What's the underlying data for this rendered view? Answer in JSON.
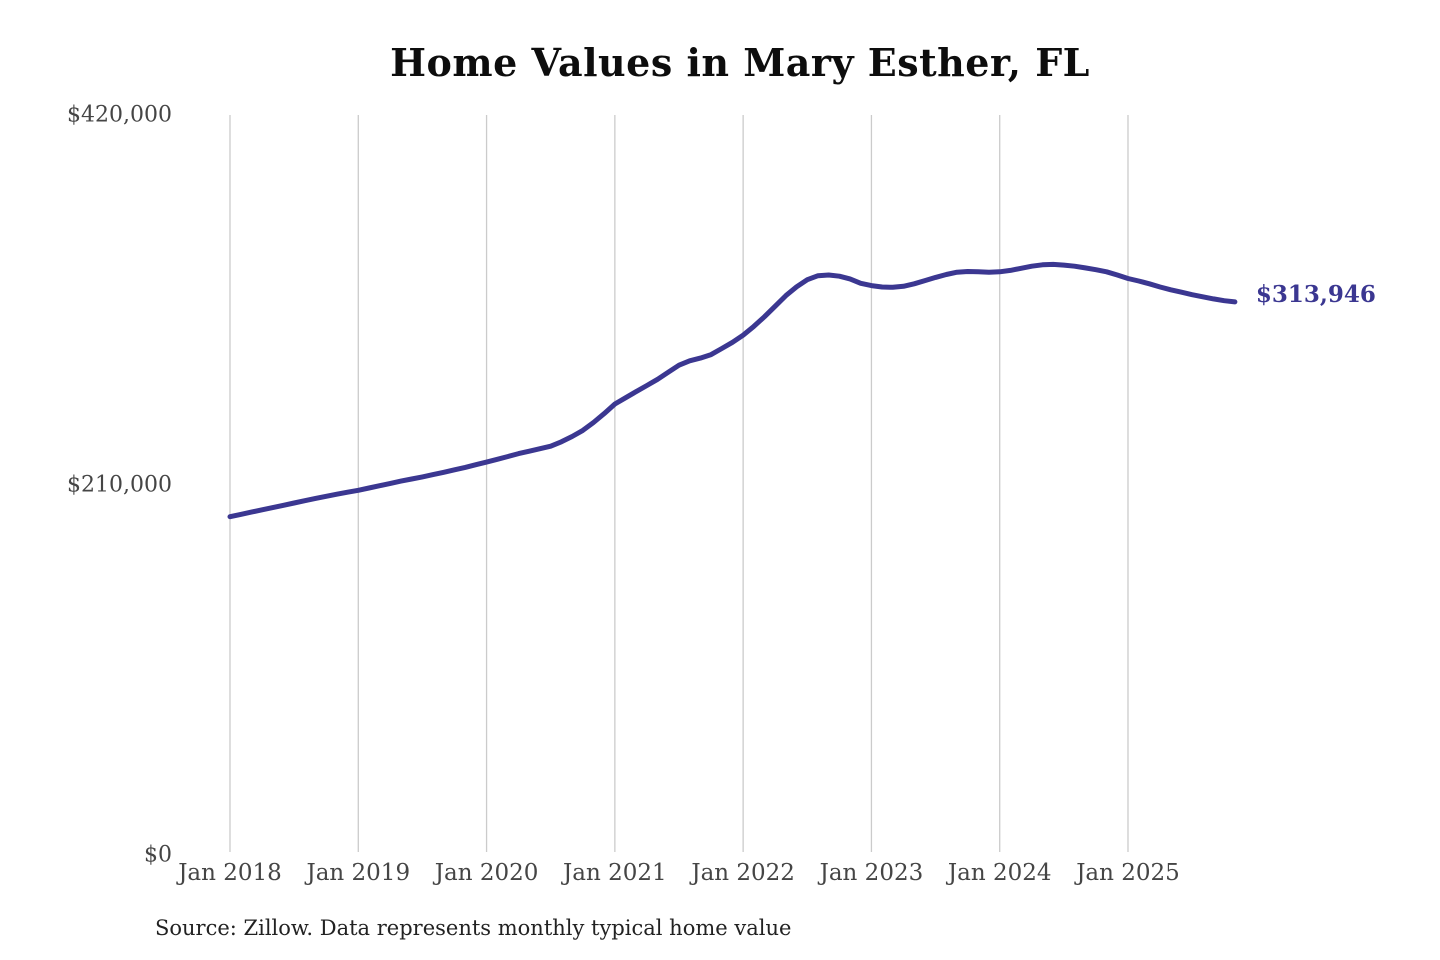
{
  "chart": {
    "title": "Home Values in Mary Esther, FL",
    "source_note": "Source: Zillow. Data represents monthly typical home value",
    "end_label": "$313,946",
    "colors": {
      "line": "#3b3791",
      "end_label": "#3b3791",
      "grid": "#cbcbcb",
      "tick_text": "#454545",
      "title_text": "#0d0d0d",
      "background": "#ffffff"
    },
    "chart_data": {
      "type": "line",
      "title": "Home Values in Mary Esther, FL",
      "xlabel": "",
      "ylabel": "",
      "ylim": [
        0,
        420000
      ],
      "grid": "vertical-only",
      "legend": "none",
      "y_ticks": [
        {
          "label": "$0",
          "value": 0
        },
        {
          "label": "$210,000",
          "value": 210000
        },
        {
          "label": "$420,000",
          "value": 420000
        }
      ],
      "x_tick_labels": [
        "Jan 2018",
        "Jan 2019",
        "Jan 2020",
        "Jan 2021",
        "Jan 2022",
        "Jan 2023",
        "Jan 2024",
        "Jan 2025"
      ],
      "x_unit": "month",
      "months": [
        "2018-01",
        "2018-02",
        "2018-03",
        "2018-04",
        "2018-05",
        "2018-06",
        "2018-07",
        "2018-08",
        "2018-09",
        "2018-10",
        "2018-11",
        "2018-12",
        "2019-01",
        "2019-02",
        "2019-03",
        "2019-04",
        "2019-05",
        "2019-06",
        "2019-07",
        "2019-08",
        "2019-09",
        "2019-10",
        "2019-11",
        "2019-12",
        "2020-01",
        "2020-02",
        "2020-03",
        "2020-04",
        "2020-05",
        "2020-06",
        "2020-07",
        "2020-08",
        "2020-09",
        "2020-10",
        "2020-11",
        "2020-12",
        "2021-01",
        "2021-02",
        "2021-03",
        "2021-04",
        "2021-05",
        "2021-06",
        "2021-07",
        "2021-08",
        "2021-09",
        "2021-10",
        "2021-11",
        "2021-12",
        "2022-01",
        "2022-02",
        "2022-03",
        "2022-04",
        "2022-05",
        "2022-06",
        "2022-07",
        "2022-08",
        "2022-09",
        "2022-10",
        "2022-11",
        "2022-12",
        "2023-01",
        "2023-02",
        "2023-03",
        "2023-04",
        "2023-05",
        "2023-06",
        "2023-07",
        "2023-08",
        "2023-09",
        "2023-10",
        "2023-11",
        "2023-12",
        "2024-01",
        "2024-02",
        "2024-03",
        "2024-04",
        "2024-05",
        "2024-06",
        "2024-07",
        "2024-08",
        "2024-09",
        "2024-10",
        "2024-11",
        "2024-12",
        "2025-01",
        "2025-02",
        "2025-03",
        "2025-04",
        "2025-05",
        "2025-06",
        "2025-07",
        "2025-08",
        "2025-09",
        "2025-10",
        "2025-11"
      ],
      "series": [
        {
          "name": "Typical home value",
          "values": [
            192000,
            193300,
            194600,
            195900,
            197200,
            198500,
            199800,
            201100,
            202400,
            203600,
            204800,
            205900,
            207000,
            208300,
            209600,
            210900,
            212200,
            213400,
            214600,
            215900,
            217200,
            218600,
            220000,
            221500,
            223000,
            224600,
            226200,
            227800,
            229200,
            230600,
            232000,
            234500,
            237500,
            241000,
            245500,
            250500,
            256000,
            259500,
            263000,
            266500,
            270000,
            274000,
            278000,
            280500,
            282000,
            284000,
            287500,
            291000,
            295000,
            300000,
            305500,
            311500,
            317500,
            322500,
            326500,
            328800,
            329200,
            328500,
            327000,
            324500,
            323200,
            322400,
            322200,
            322800,
            324200,
            326000,
            327800,
            329500,
            330800,
            331200,
            331000,
            330800,
            331000,
            331800,
            333000,
            334200,
            335000,
            335200,
            334800,
            334200,
            333200,
            332200,
            331000,
            329200,
            327200,
            325800,
            324200,
            322400,
            320800,
            319400,
            318000,
            316800,
            315600,
            314600,
            313946
          ]
        }
      ],
      "annotations": [
        {
          "text": "$313,946",
          "attached_to": "last-point"
        }
      ]
    }
  }
}
